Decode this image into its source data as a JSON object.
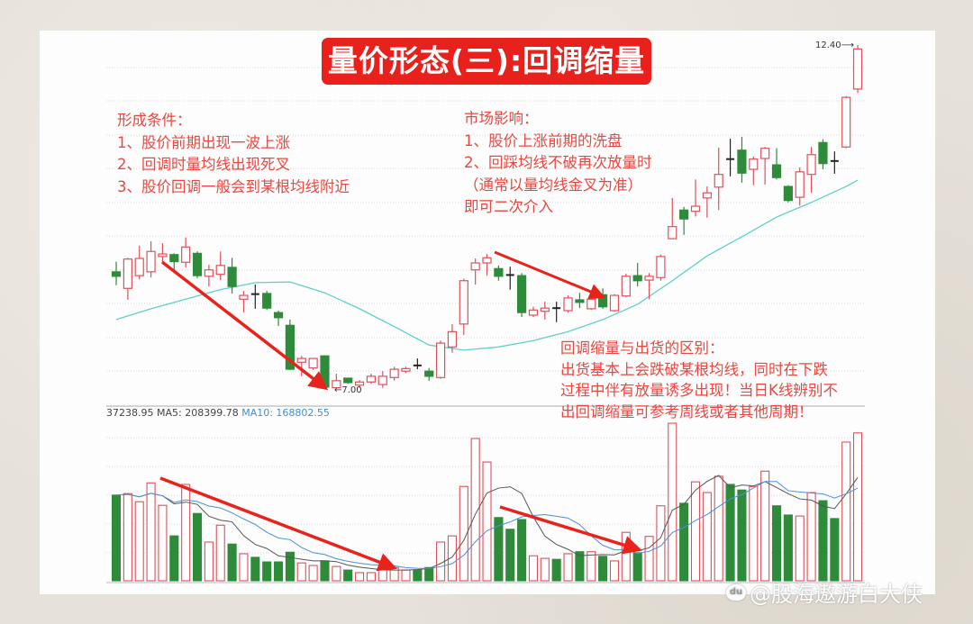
{
  "title": "量价形态(三):回调缩量",
  "notes": {
    "formation": {
      "heading": "形成条件：",
      "lines": [
        "1、股价前期出现一波上涨",
        "2、回调时量均线出现死叉",
        "3、股价回调一般会到某根均线附近"
      ]
    },
    "market_impact": {
      "heading": "市场影响：",
      "lines": [
        "1、股价上涨前期的洗盘",
        "2、回踩均线不破再次放量时",
        "（通常以量均线金叉为准）",
        "即可二次介入"
      ]
    },
    "difference": {
      "heading": "回调缩量与出货的区别：",
      "lines": [
        "出货基本上会跌破某根均线，同时在下跌",
        "过程中伴有放量诱多出现！当日K线辨别不",
        "出回调缩量可参考周线或者其他周期！"
      ]
    }
  },
  "volume_legend": {
    "volume": "37238.95",
    "ma5": "MA5: 208399.78",
    "ma10": "MA10: 168802.55"
  },
  "watermark": {
    "logo": "du",
    "text": "@股海遨游白大侠"
  },
  "colors": {
    "up": "#e0505a",
    "down": "#2e8b3a",
    "ma_price": "#5fd0c8",
    "vol_ma5": "#555555",
    "vol_ma10": "#4a90d9",
    "arrow": "#e8231c",
    "title_bg": "#e8211c",
    "note_text": "#e9473f"
  },
  "chart_data": [
    {
      "type": "candlestick",
      "title": "",
      "ylim": [
        6.9,
        12.5
      ],
      "grid": true,
      "annotations": [
        {
          "text": "12.40",
          "candle": 64,
          "kind": "high-marker"
        },
        {
          "text": "7.00",
          "candle": 18,
          "kind": "low-marker"
        }
      ],
      "candles_ohlc": [
        [
          8.84,
          9.0,
          8.63,
          8.77
        ],
        [
          8.58,
          9.06,
          8.4,
          9.04
        ],
        [
          8.78,
          9.25,
          8.72,
          9.05
        ],
        [
          8.84,
          9.32,
          8.75,
          9.16
        ],
        [
          9.08,
          9.29,
          8.97,
          9.12
        ],
        [
          9.11,
          9.13,
          8.87,
          9.0
        ],
        [
          8.99,
          9.38,
          8.91,
          9.23
        ],
        [
          9.13,
          9.16,
          8.74,
          8.78
        ],
        [
          8.77,
          8.95,
          8.61,
          8.87
        ],
        [
          8.8,
          9.16,
          8.71,
          8.94
        ],
        [
          8.91,
          9.06,
          8.5,
          8.61
        ],
        [
          8.41,
          8.54,
          8.2,
          8.47
        ],
        [
          8.49,
          8.64,
          8.26,
          8.48
        ],
        [
          8.5,
          8.54,
          8.24,
          8.27
        ],
        [
          8.2,
          8.23,
          7.99,
          8.12
        ],
        [
          8.0,
          8.09,
          7.3,
          7.31
        ],
        [
          7.42,
          7.52,
          7.2,
          7.48
        ],
        [
          7.33,
          7.48,
          7.3,
          7.48
        ],
        [
          7.52,
          7.52,
          7.0,
          7.03
        ],
        [
          7.02,
          7.24,
          7.01,
          7.13
        ],
        [
          7.17,
          7.17,
          7.08,
          7.1
        ],
        [
          7.06,
          7.14,
          7.02,
          7.11
        ],
        [
          7.11,
          7.24,
          7.08,
          7.2
        ],
        [
          7.07,
          7.28,
          7.02,
          7.2
        ],
        [
          7.18,
          7.35,
          7.13,
          7.31
        ],
        [
          7.28,
          7.35,
          7.25,
          7.32
        ],
        [
          7.37,
          7.48,
          7.31,
          7.37
        ],
        [
          7.28,
          7.33,
          7.13,
          7.2
        ],
        [
          7.18,
          7.76,
          7.16,
          7.72
        ],
        [
          7.66,
          8.02,
          7.57,
          7.9
        ],
        [
          8.02,
          8.73,
          7.85,
          8.7
        ],
        [
          8.87,
          9.05,
          8.64,
          8.98
        ],
        [
          8.98,
          9.12,
          8.78,
          9.06
        ],
        [
          8.89,
          8.94,
          8.7,
          8.77
        ],
        [
          8.79,
          8.92,
          8.56,
          8.78
        ],
        [
          8.78,
          8.82,
          8.13,
          8.2
        ],
        [
          8.16,
          8.29,
          8.13,
          8.24
        ],
        [
          8.22,
          8.37,
          8.09,
          8.27
        ],
        [
          8.27,
          8.37,
          8.05,
          8.25
        ],
        [
          8.23,
          8.47,
          8.2,
          8.43
        ],
        [
          8.4,
          8.51,
          8.27,
          8.36
        ],
        [
          8.26,
          8.43,
          8.24,
          8.41
        ],
        [
          8.48,
          8.58,
          8.26,
          8.29
        ],
        [
          8.23,
          8.49,
          8.21,
          8.47
        ],
        [
          8.46,
          8.81,
          8.44,
          8.77
        ],
        [
          8.78,
          8.98,
          8.61,
          8.7
        ],
        [
          8.71,
          8.82,
          8.41,
          8.77
        ],
        [
          8.75,
          9.11,
          8.7,
          9.08
        ],
        [
          9.36,
          10.0,
          9.36,
          9.55
        ],
        [
          9.81,
          9.86,
          9.42,
          9.67
        ],
        [
          9.79,
          10.29,
          9.71,
          9.87
        ],
        [
          10.0,
          10.18,
          9.69,
          10.08
        ],
        [
          10.17,
          10.79,
          9.81,
          10.37
        ],
        [
          10.59,
          10.93,
          10.34,
          10.61
        ],
        [
          10.75,
          10.96,
          10.24,
          10.39
        ],
        [
          10.45,
          10.65,
          10.2,
          10.61
        ],
        [
          10.62,
          10.8,
          10.21,
          10.78
        ],
        [
          10.52,
          10.78,
          10.29,
          10.32
        ],
        [
          10.18,
          10.2,
          9.93,
          9.96
        ],
        [
          10.01,
          10.48,
          9.88,
          10.41
        ],
        [
          10.37,
          10.8,
          10.08,
          10.68
        ],
        [
          10.87,
          10.92,
          10.45,
          10.54
        ],
        [
          10.58,
          10.73,
          10.38,
          10.58
        ],
        [
          10.8,
          11.6,
          10.78,
          11.58
        ],
        [
          11.71,
          12.4,
          11.65,
          12.34
        ]
      ],
      "moving_average": [
        [
          0,
          8.09
        ],
        [
          3,
          8.26
        ],
        [
          6,
          8.41
        ],
        [
          9,
          8.56
        ],
        [
          12,
          8.67
        ],
        [
          15,
          8.68
        ],
        [
          18,
          8.51
        ],
        [
          21,
          8.26
        ],
        [
          24,
          7.98
        ],
        [
          27,
          7.69
        ],
        [
          30,
          7.61
        ],
        [
          33,
          7.66
        ],
        [
          36,
          7.76
        ],
        [
          39,
          7.9
        ],
        [
          42,
          8.09
        ],
        [
          45,
          8.33
        ],
        [
          48,
          8.7
        ],
        [
          51,
          9.09
        ],
        [
          54,
          9.39
        ],
        [
          57,
          9.7
        ],
        [
          60,
          9.93
        ],
        [
          63,
          10.18
        ],
        [
          64,
          10.28
        ]
      ]
    },
    {
      "type": "bar",
      "title": "",
      "series": [
        {
          "name": "MA5"
        },
        {
          "name": "MA10"
        }
      ],
      "volume": [
        168000,
        171000,
        155000,
        192000,
        148000,
        88000,
        189000,
        132000,
        76000,
        109000,
        72000,
        53000,
        46000,
        37000,
        37000,
        56000,
        35000,
        30000,
        39000,
        28000,
        21000,
        16000,
        16000,
        26000,
        26000,
        21000,
        21000,
        26000,
        76000,
        88000,
        185000,
        279000,
        233000,
        124000,
        101000,
        120000,
        49000,
        44000,
        42000,
        53000,
        57000,
        57000,
        48000,
        39000,
        95000,
        55000,
        87000,
        147000,
        309000,
        152000,
        194000,
        173000,
        205000,
        189000,
        178000,
        185000,
        215000,
        147000,
        129000,
        127000,
        173000,
        157000,
        122000,
        272000,
        290000
      ]
    }
  ]
}
